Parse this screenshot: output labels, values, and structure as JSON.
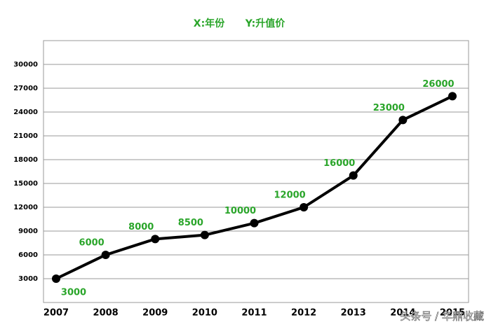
{
  "chart_data": {
    "type": "line",
    "x_label": "X:年份",
    "y_label": "Y:升值价",
    "categories": [
      "2007",
      "2008",
      "2009",
      "2010",
      "2011",
      "2012",
      "2013",
      "2014",
      "2015"
    ],
    "values": [
      3000,
      6000,
      8000,
      8500,
      10000,
      12000,
      16000,
      23000,
      26000
    ],
    "color": "#000000",
    "ylim": [
      0,
      33000
    ],
    "yticks": [
      3000,
      6000,
      9000,
      12000,
      15000,
      18000,
      21000,
      24000,
      27000,
      30000
    ],
    "grid": true,
    "watermark": "头条号 / 华鼎收藏"
  }
}
